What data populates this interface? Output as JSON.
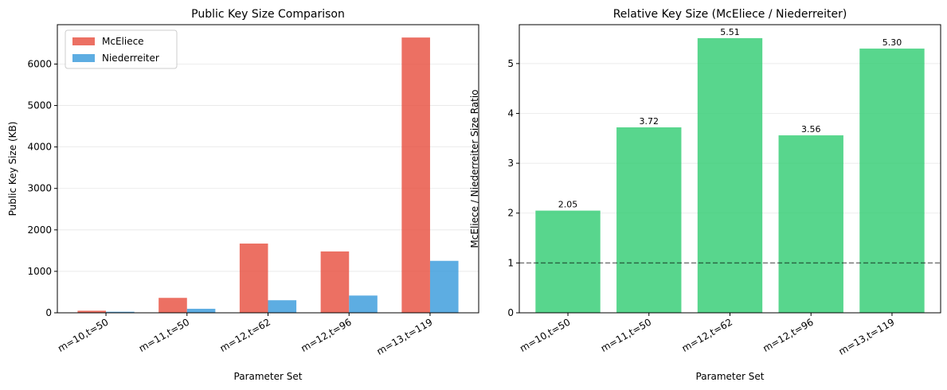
{
  "chart_data": [
    {
      "type": "bar",
      "title": "Public Key Size Comparison",
      "xlabel": "Parameter Set",
      "ylabel": "Public Key Size (KB)",
      "categories": [
        "m=10,t=50",
        "m=11,t=50",
        "m=12,t=62",
        "m=12,t=96",
        "m=13,t=119"
      ],
      "series": [
        {
          "name": "McEliece",
          "color": "#e74c3c",
          "values": [
            50,
            360,
            1670,
            1480,
            6640
          ]
        },
        {
          "name": "Niederreiter",
          "color": "#3498db",
          "values": [
            25,
            97,
            303,
            416,
            1253
          ]
        }
      ],
      "ylim": [
        0,
        6950
      ],
      "yticks": [
        0,
        1000,
        2000,
        3000,
        4000,
        5000,
        6000
      ],
      "grid": "y",
      "legend": "top-left"
    },
    {
      "type": "bar",
      "title": "Relative Key Size (McEliece / Niederreiter)",
      "xlabel": "Parameter Set",
      "ylabel": "McEliece / Niederreiter Size Ratio",
      "categories": [
        "m=10,t=50",
        "m=11,t=50",
        "m=12,t=62",
        "m=12,t=96",
        "m=13,t=119"
      ],
      "values": [
        2.05,
        3.72,
        5.51,
        3.56,
        5.3
      ],
      "value_labels": [
        "2.05",
        "3.72",
        "5.51",
        "3.56",
        "5.30"
      ],
      "color": "#2ecc71",
      "ylim": [
        0,
        5.78
      ],
      "yticks": [
        0,
        1,
        2,
        3,
        4,
        5
      ],
      "reference_line": {
        "y": 1,
        "style": "dashed",
        "color": "#000000"
      },
      "grid": "y"
    }
  ]
}
